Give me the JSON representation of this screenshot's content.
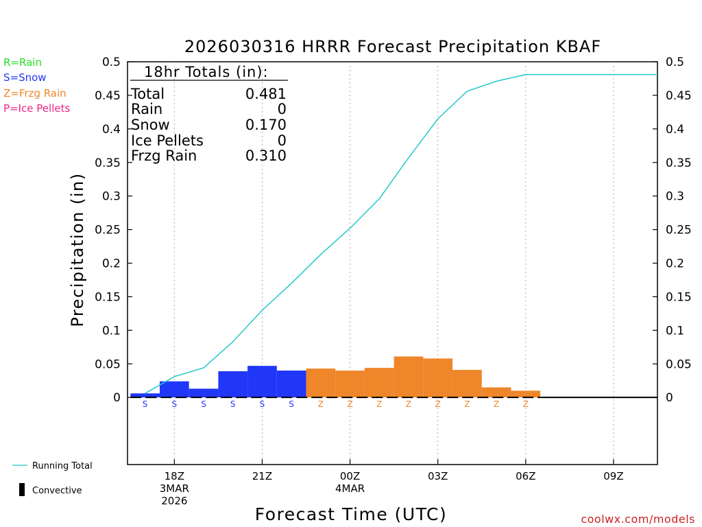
{
  "chart_data": {
    "type": "bar",
    "title": "2026030316 HRRR Forecast Precipitation KBAF",
    "xlabel": "Forecast Time (UTC)",
    "ylabel": "Precipitation (in)",
    "ylim": [
      -0.1,
      0.5
    ],
    "xlim_hours": [
      16.4,
      34.5
    ],
    "y_ticks": [
      "0",
      "0.05",
      "0.1",
      "0.15",
      "0.2",
      "0.25",
      "0.3",
      "0.35",
      "0.4",
      "0.45",
      "0.5"
    ],
    "x_ticks": [
      {
        "hour": 18,
        "line1": "18Z",
        "line2": "3MAR",
        "line3": "2026"
      },
      {
        "hour": 21,
        "line1": "21Z",
        "line2": "",
        "line3": ""
      },
      {
        "hour": 24,
        "line1": "00Z",
        "line2": "4MAR",
        "line3": ""
      },
      {
        "hour": 27,
        "line1": "03Z",
        "line2": "",
        "line3": ""
      },
      {
        "hour": 30,
        "line1": "06Z",
        "line2": "",
        "line3": ""
      },
      {
        "hour": 33,
        "line1": "09Z",
        "line2": "",
        "line3": ""
      }
    ],
    "hourly": [
      {
        "hour": 17,
        "amount": 0.006,
        "type": "S"
      },
      {
        "hour": 18,
        "amount": 0.024,
        "type": "S"
      },
      {
        "hour": 19,
        "amount": 0.013,
        "type": "S"
      },
      {
        "hour": 20,
        "amount": 0.039,
        "type": "S"
      },
      {
        "hour": 21,
        "amount": 0.047,
        "type": "S"
      },
      {
        "hour": 22,
        "amount": 0.04,
        "type": "S"
      },
      {
        "hour": 23,
        "amount": 0.043,
        "type": "Z"
      },
      {
        "hour": 24,
        "amount": 0.04,
        "type": "Z"
      },
      {
        "hour": 25,
        "amount": 0.044,
        "type": "Z"
      },
      {
        "hour": 26,
        "amount": 0.061,
        "type": "Z"
      },
      {
        "hour": 27,
        "amount": 0.058,
        "type": "Z"
      },
      {
        "hour": 28,
        "amount": 0.041,
        "type": "Z"
      },
      {
        "hour": 29,
        "amount": 0.015,
        "type": "Z"
      },
      {
        "hour": 30,
        "amount": 0.01,
        "type": "Z"
      }
    ],
    "running_total": {
      "hours": [
        17,
        18,
        19,
        20,
        21,
        22,
        23,
        24,
        25,
        26,
        27,
        28,
        29,
        30,
        31,
        32,
        33,
        34,
        34.5
      ],
      "values": [
        0.006,
        0.031,
        0.044,
        0.083,
        0.13,
        0.17,
        0.213,
        0.252,
        0.296,
        0.357,
        0.415,
        0.456,
        0.471,
        0.481,
        0.481,
        0.481,
        0.481,
        0.481,
        0.481
      ]
    },
    "zero_line_end_hours": [
      30.5,
      34.5
    ],
    "colors": {
      "snow": "#2137f8",
      "frzg_rain": "#ef862a",
      "rain": "#22dd22",
      "ice_pellets": "#ee2288",
      "running_total": "#22c8c8"
    }
  },
  "totals": {
    "header": "18hr Totals (in):",
    "rows": [
      {
        "label": "Total",
        "value": "0.481"
      },
      {
        "label": "Rain",
        "value": "0"
      },
      {
        "label": "Snow",
        "value": "0.170"
      },
      {
        "label": "Ice Pellets",
        "value": "0"
      },
      {
        "label": "Frzg Rain",
        "value": "0.310"
      }
    ]
  },
  "type_legend": [
    {
      "text": "R=Rain",
      "color": "#22dd22"
    },
    {
      "text": "S=Snow",
      "color": "#2137f8"
    },
    {
      "text": "Z=Frzg Rain",
      "color": "#ef862a"
    },
    {
      "text": "P=Ice Pellets",
      "color": "#ee2288"
    }
  ],
  "legend": {
    "running_total": "Running Total",
    "convective": "Convective"
  },
  "credit": "coolwx.com/models"
}
